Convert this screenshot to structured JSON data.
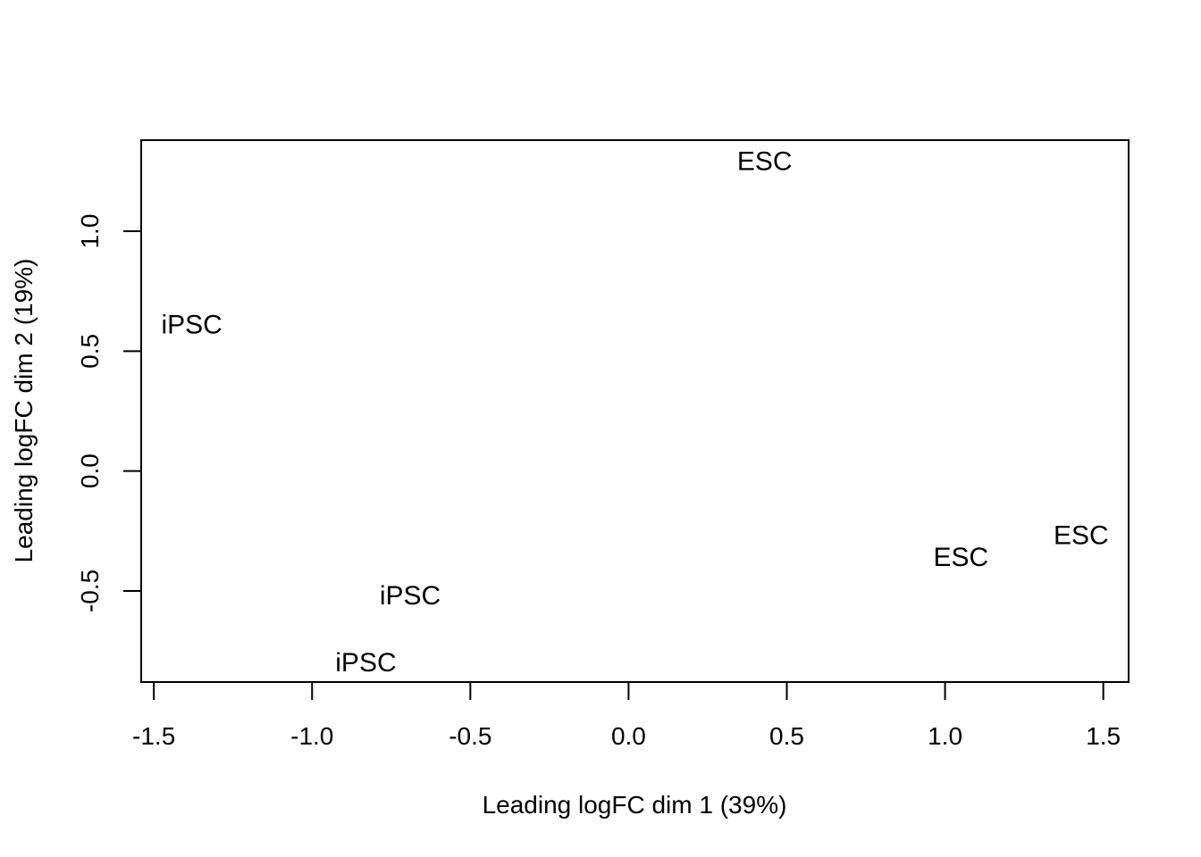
{
  "chart_data": {
    "type": "scatter",
    "title": "",
    "xlabel": "Leading logFC dim 1 (39%)",
    "ylabel": "Leading logFC dim 2 (19%)",
    "xlim": [
      -1.54,
      1.58
    ],
    "ylim": [
      -0.88,
      1.38
    ],
    "x_ticks": [
      -1.5,
      -1.0,
      -0.5,
      0.0,
      0.5,
      1.0,
      1.5
    ],
    "x_tick_labels": [
      "-1.5",
      "-1.0",
      "-0.5",
      "0.0",
      "0.5",
      "1.0",
      "1.5"
    ],
    "y_ticks": [
      -0.5,
      0.0,
      0.5,
      1.0
    ],
    "y_tick_labels": [
      "-0.5",
      "0.0",
      "0.5",
      "1.0"
    ],
    "grid": false,
    "legend": "none",
    "points": [
      {
        "label": "ESC",
        "x": 0.43,
        "y": 1.29
      },
      {
        "label": "iPSC",
        "x": -1.38,
        "y": 0.61
      },
      {
        "label": "ESC",
        "x": 1.05,
        "y": -0.36
      },
      {
        "label": "ESC",
        "x": 1.43,
        "y": -0.27
      },
      {
        "label": "iPSC",
        "x": -0.69,
        "y": -0.52
      },
      {
        "label": "iPSC",
        "x": -0.83,
        "y": -0.8
      }
    ]
  }
}
